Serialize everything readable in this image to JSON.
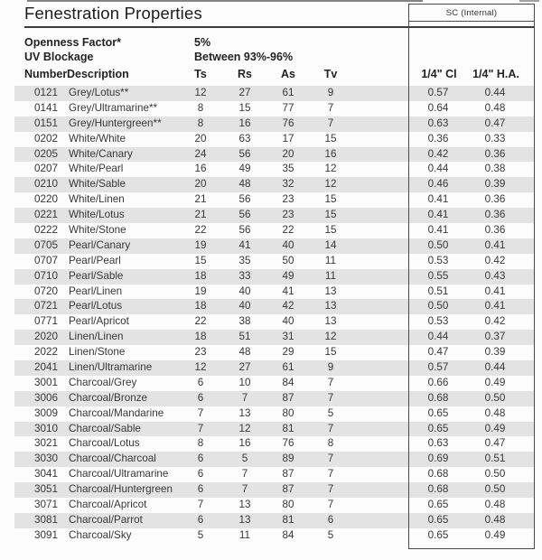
{
  "page": {
    "title": "Fenestration Properties"
  },
  "sc_box": {
    "label": "SC (Internal)"
  },
  "meta": [
    {
      "label": "Openness Factor*",
      "value": "5%"
    },
    {
      "label": "UV Blockage",
      "value": "Between 93%-96%"
    }
  ],
  "columns": {
    "number": "Number",
    "description": "Description",
    "ts": "Ts",
    "rs": "Rs",
    "as": "As",
    "tv": "Tv",
    "cl": "1/4\" Cl",
    "ha": "1/4\" H.A."
  },
  "colors": {
    "row_shade": "#e3e3e3",
    "border": "#4a4a4a",
    "text": "#383838"
  },
  "rows": [
    {
      "number": "0121",
      "description": "Grey/Lotus**",
      "ts": "12",
      "rs": "27",
      "as": "61",
      "tv": "9",
      "cl": "0.57",
      "ha": "0.44"
    },
    {
      "number": "0141",
      "description": "Grey/Ultramarine**",
      "ts": "8",
      "rs": "15",
      "as": "77",
      "tv": "7",
      "cl": "0.64",
      "ha": "0.48"
    },
    {
      "number": "0151",
      "description": "Grey/Huntergreen**",
      "ts": "8",
      "rs": "16",
      "as": "76",
      "tv": "7",
      "cl": "0.63",
      "ha": "0.47"
    },
    {
      "number": "0202",
      "description": "White/White",
      "ts": "20",
      "rs": "63",
      "as": "17",
      "tv": "15",
      "cl": "0.36",
      "ha": "0.33"
    },
    {
      "number": "0205",
      "description": "White/Canary",
      "ts": "24",
      "rs": "56",
      "as": "20",
      "tv": "16",
      "cl": "0.42",
      "ha": "0.36"
    },
    {
      "number": "0207",
      "description": "White/Pearl",
      "ts": "16",
      "rs": "49",
      "as": "35",
      "tv": "12",
      "cl": "0.44",
      "ha": "0.38"
    },
    {
      "number": "0210",
      "description": "White/Sable",
      "ts": "20",
      "rs": "48",
      "as": "32",
      "tv": "12",
      "cl": "0.46",
      "ha": "0.39"
    },
    {
      "number": "0220",
      "description": "White/Linen",
      "ts": "21",
      "rs": "56",
      "as": "23",
      "tv": "15",
      "cl": "0.41",
      "ha": "0.36"
    },
    {
      "number": "0221",
      "description": "White/Lotus",
      "ts": "21",
      "rs": "56",
      "as": "23",
      "tv": "15",
      "cl": "0.41",
      "ha": "0.36"
    },
    {
      "number": "0222",
      "description": "White/Stone",
      "ts": "22",
      "rs": "56",
      "as": "22",
      "tv": "15",
      "cl": "0.41",
      "ha": "0.36"
    },
    {
      "number": "0705",
      "description": "Pearl/Canary",
      "ts": "19",
      "rs": "41",
      "as": "40",
      "tv": "14",
      "cl": "0.50",
      "ha": "0.41"
    },
    {
      "number": "0707",
      "description": "Pearl/Pearl",
      "ts": "15",
      "rs": "35",
      "as": "50",
      "tv": "11",
      "cl": "0.53",
      "ha": "0.42"
    },
    {
      "number": "0710",
      "description": "Pearl/Sable",
      "ts": "18",
      "rs": "33",
      "as": "49",
      "tv": "11",
      "cl": "0.55",
      "ha": "0.43"
    },
    {
      "number": "0720",
      "description": "Pearl/Linen",
      "ts": "19",
      "rs": "40",
      "as": "41",
      "tv": "13",
      "cl": "0.51",
      "ha": "0.41"
    },
    {
      "number": "0721",
      "description": "Pearl/Lotus",
      "ts": "18",
      "rs": "40",
      "as": "42",
      "tv": "13",
      "cl": "0.50",
      "ha": "0.41"
    },
    {
      "number": "0771",
      "description": "Pearl/Apricot",
      "ts": "22",
      "rs": "38",
      "as": "40",
      "tv": "13",
      "cl": "0.53",
      "ha": "0.42"
    },
    {
      "number": "2020",
      "description": "Linen/Linen",
      "ts": "18",
      "rs": "51",
      "as": "31",
      "tv": "12",
      "cl": "0.44",
      "ha": "0.37"
    },
    {
      "number": "2022",
      "description": "Linen/Stone",
      "ts": "23",
      "rs": "48",
      "as": "29",
      "tv": "15",
      "cl": "0.47",
      "ha": "0.39"
    },
    {
      "number": "2041",
      "description": "Linen/Ultramarine",
      "ts": "12",
      "rs": "27",
      "as": "61",
      "tv": "9",
      "cl": "0.57",
      "ha": "0.44"
    },
    {
      "number": "3001",
      "description": "Charcoal/Grey",
      "ts": "6",
      "rs": "10",
      "as": "84",
      "tv": "7",
      "cl": "0.66",
      "ha": "0.49"
    },
    {
      "number": "3006",
      "description": "Charcoal/Bronze",
      "ts": "6",
      "rs": "7",
      "as": "87",
      "tv": "7",
      "cl": "0.68",
      "ha": "0.50"
    },
    {
      "number": "3009",
      "description": "Charcoal/Mandarine",
      "ts": "7",
      "rs": "13",
      "as": "80",
      "tv": "5",
      "cl": "0.65",
      "ha": "0.48"
    },
    {
      "number": "3010",
      "description": "Charcoal/Sable",
      "ts": "7",
      "rs": "12",
      "as": "81",
      "tv": "7",
      "cl": "0.65",
      "ha": "0.49"
    },
    {
      "number": "3021",
      "description": "Charcoal/Lotus",
      "ts": "8",
      "rs": "16",
      "as": "76",
      "tv": "8",
      "cl": "0.63",
      "ha": "0.47"
    },
    {
      "number": "3030",
      "description": "Charcoal/Charcoal",
      "ts": "6",
      "rs": "5",
      "as": "89",
      "tv": "7",
      "cl": "0.69",
      "ha": "0.51"
    },
    {
      "number": "3041",
      "description": "Charcoal/Ultramarine",
      "ts": "6",
      "rs": "7",
      "as": "87",
      "tv": "7",
      "cl": "0.68",
      "ha": "0.50"
    },
    {
      "number": "3051",
      "description": "Charcoal/Huntergreen",
      "ts": "6",
      "rs": "7",
      "as": "87",
      "tv": "7",
      "cl": "0.68",
      "ha": "0.50"
    },
    {
      "number": "3071",
      "description": "Charcoal/Apricot",
      "ts": "7",
      "rs": "13",
      "as": "80",
      "tv": "7",
      "cl": "0.65",
      "ha": "0.48"
    },
    {
      "number": "3081",
      "description": "Charcoal/Parrot",
      "ts": "6",
      "rs": "13",
      "as": "81",
      "tv": "6",
      "cl": "0.65",
      "ha": "0.48"
    },
    {
      "number": "3091",
      "description": "Charcoal/Sky",
      "ts": "5",
      "rs": "11",
      "as": "84",
      "tv": "5",
      "cl": "0.65",
      "ha": "0.49"
    }
  ]
}
